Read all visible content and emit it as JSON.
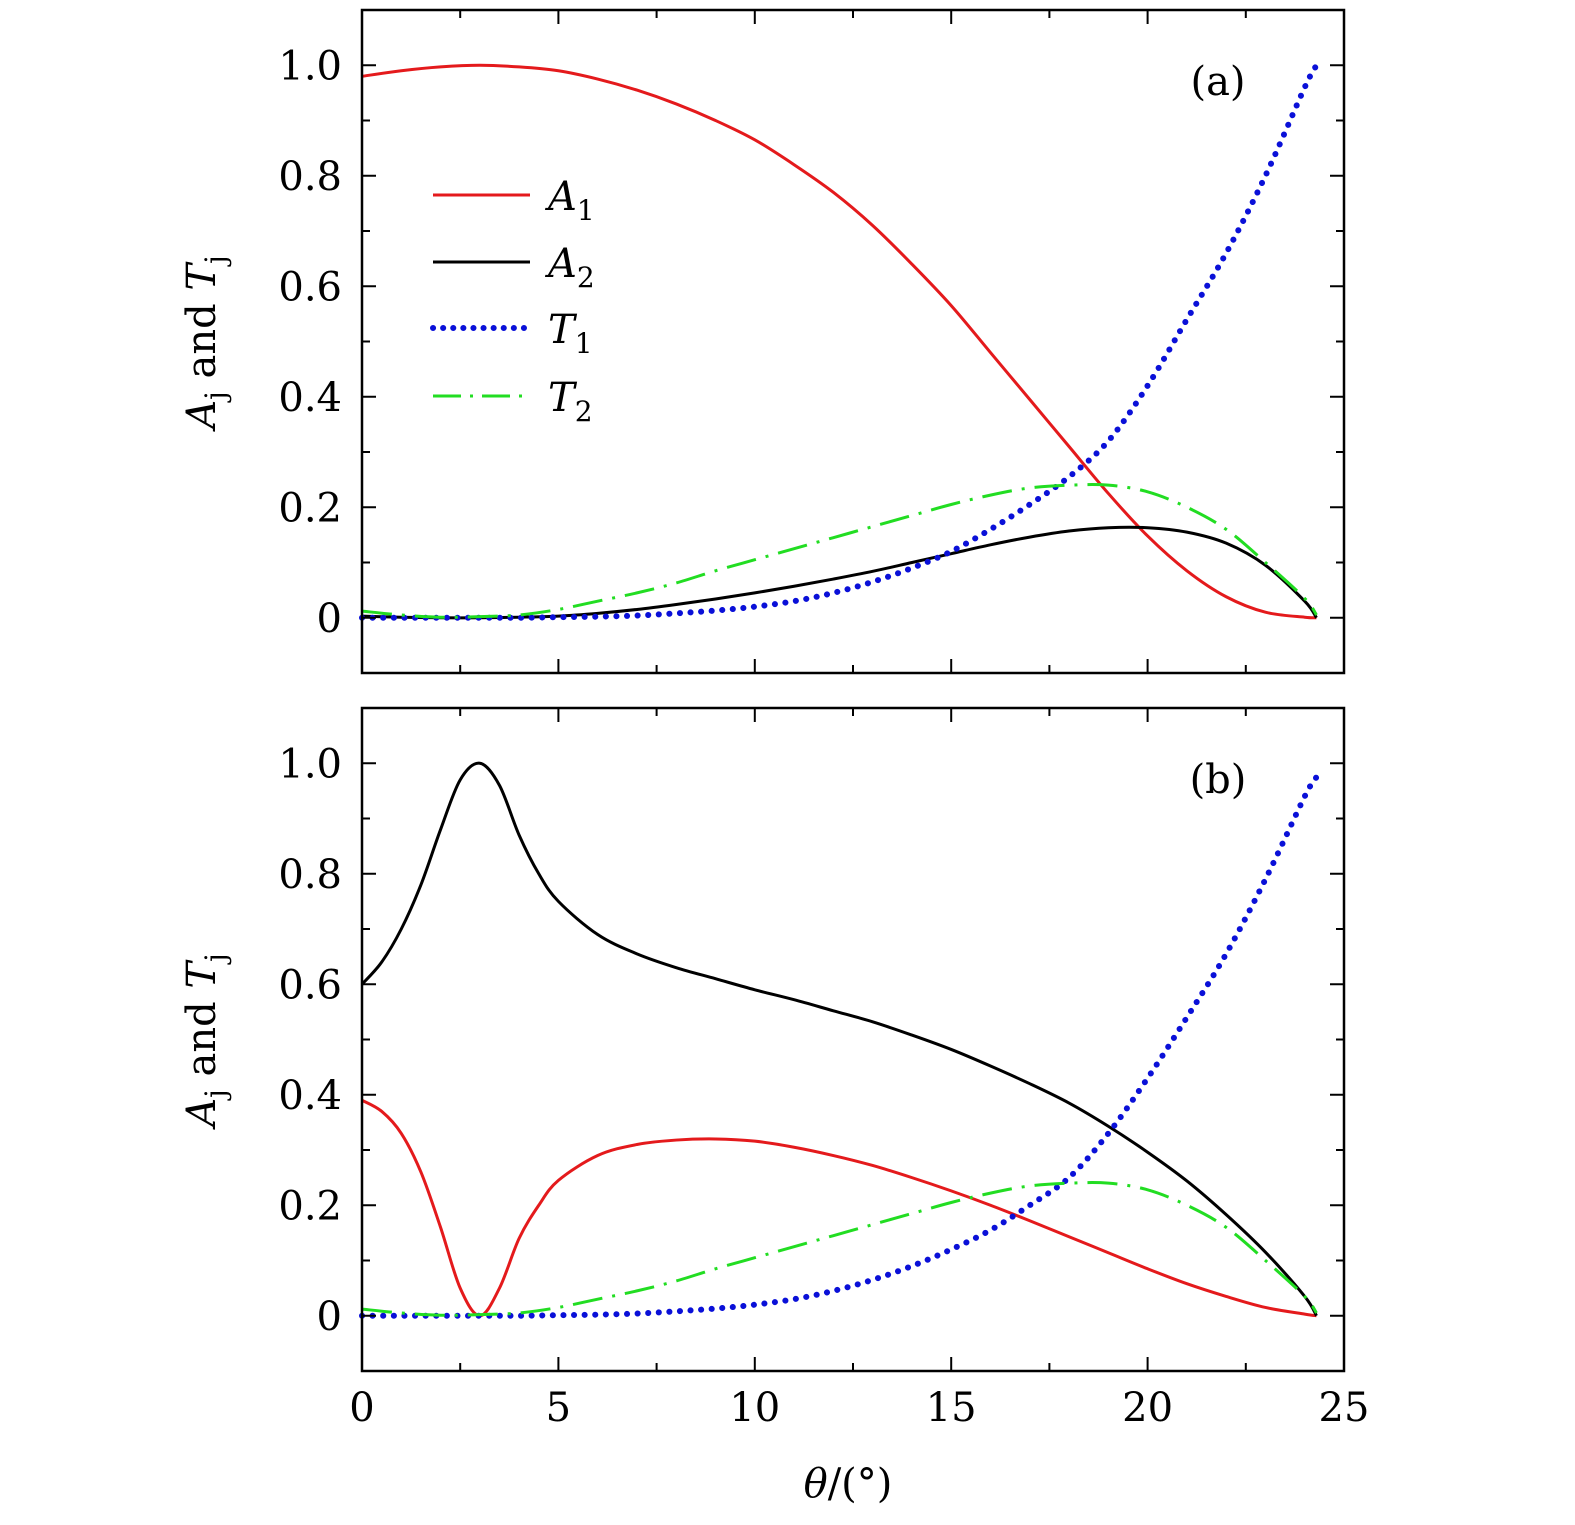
{
  "chart_data": [
    {
      "type": "line",
      "panel_label": "(a)",
      "ylabel": {
        "main": "A",
        "main_sub": "j",
        "mid": " and ",
        "second": "T",
        "second_sub": "j"
      },
      "xlim": [
        0,
        25
      ],
      "ylim": [
        -0.1,
        1.1
      ],
      "xticks": [
        0,
        5,
        10,
        15,
        20,
        25
      ],
      "yticks": [
        {
          "v": 0,
          "label": "0"
        },
        {
          "v": 0.2,
          "label": "0.2"
        },
        {
          "v": 0.4,
          "label": "0.4"
        },
        {
          "v": 0.6,
          "label": "0.6"
        },
        {
          "v": 0.8,
          "label": "0.8"
        },
        {
          "v": 1.0,
          "label": "1.0"
        }
      ],
      "show_xticklabels": false,
      "legend": {
        "placement": "upper-left"
      },
      "series": [
        {
          "name": "A1",
          "symbol": "A",
          "subscript": "1",
          "color": "#e41a1c",
          "style": "solid",
          "x": [
            0,
            1,
            2,
            3,
            4,
            5,
            6,
            7,
            8,
            9,
            10,
            11,
            12,
            13,
            14,
            15,
            16,
            17,
            18,
            19,
            20,
            21,
            22,
            23,
            24,
            24.3
          ],
          "y": [
            0.98,
            0.99,
            0.997,
            1.0,
            0.997,
            0.99,
            0.975,
            0.955,
            0.93,
            0.9,
            0.865,
            0.82,
            0.77,
            0.71,
            0.64,
            0.565,
            0.48,
            0.395,
            0.31,
            0.225,
            0.148,
            0.085,
            0.038,
            0.01,
            0.001,
            0
          ]
        },
        {
          "name": "A2",
          "symbol": "A",
          "subscript": "2",
          "color": "#000000",
          "style": "solid",
          "x": [
            0,
            1,
            2,
            3,
            4,
            5,
            6,
            7,
            8,
            9,
            10,
            11,
            12,
            13,
            14,
            15,
            16,
            17,
            18,
            19,
            20,
            21,
            22,
            23,
            24,
            24.3
          ],
          "y": [
            0.003,
            0.001,
            0,
            0,
            0.001,
            0.003,
            0.008,
            0.015,
            0.024,
            0.034,
            0.045,
            0.057,
            0.07,
            0.084,
            0.1,
            0.116,
            0.132,
            0.146,
            0.157,
            0.163,
            0.163,
            0.155,
            0.135,
            0.095,
            0.03,
            0
          ]
        },
        {
          "name": "T1",
          "symbol": "T",
          "subscript": "1",
          "color": "#0a10d8",
          "style": "dotted",
          "x": [
            0,
            1,
            2,
            3,
            4,
            5,
            6,
            7,
            8,
            9,
            10,
            11,
            12,
            13,
            14,
            15,
            16,
            17,
            18,
            19,
            20,
            21,
            22,
            23,
            24,
            24.3
          ],
          "y": [
            0,
            0,
            0,
            0,
            0,
            0.001,
            0.002,
            0.004,
            0.008,
            0.013,
            0.02,
            0.03,
            0.045,
            0.065,
            0.09,
            0.12,
            0.16,
            0.205,
            0.255,
            0.32,
            0.42,
            0.54,
            0.66,
            0.8,
            0.96,
            1.0
          ]
        },
        {
          "name": "T2",
          "symbol": "T",
          "subscript": "2",
          "color": "#22dd22",
          "style": "dashdot",
          "x": [
            0,
            1,
            2,
            3,
            4,
            5,
            6,
            7,
            8,
            9,
            10,
            11,
            12,
            13,
            14,
            15,
            16,
            17,
            18,
            19,
            20,
            21,
            22,
            23,
            24,
            24.3
          ],
          "y": [
            0.012,
            0.005,
            0.001,
            0.002,
            0.005,
            0.015,
            0.03,
            0.045,
            0.063,
            0.085,
            0.105,
            0.125,
            0.145,
            0.165,
            0.185,
            0.205,
            0.222,
            0.235,
            0.24,
            0.24,
            0.228,
            0.2,
            0.16,
            0.1,
            0.035,
            0.005
          ]
        }
      ]
    },
    {
      "type": "line",
      "panel_label": "(b)",
      "ylabel": {
        "main": "A",
        "main_sub": "j",
        "mid": " and ",
        "second": "T",
        "second_sub": "j"
      },
      "xlabel": {
        "symbol": "θ",
        "unit": "/(°)"
      },
      "xlim": [
        0,
        25
      ],
      "ylim": [
        -0.1,
        1.1
      ],
      "xticks": [
        0,
        5,
        10,
        15,
        20,
        25
      ],
      "xticklabels": [
        "0",
        "5",
        "10",
        "15",
        "20",
        "25"
      ],
      "yticks": [
        {
          "v": 0,
          "label": "0"
        },
        {
          "v": 0.2,
          "label": "0.2"
        },
        {
          "v": 0.4,
          "label": "0.4"
        },
        {
          "v": 0.6,
          "label": "0.6"
        },
        {
          "v": 0.8,
          "label": "0.8"
        },
        {
          "v": 1.0,
          "label": "1.0"
        }
      ],
      "show_xticklabels": true,
      "series": [
        {
          "name": "A1",
          "color": "#e41a1c",
          "style": "solid",
          "x": [
            0,
            0.5,
            1,
            1.5,
            2,
            2.5,
            3,
            3.5,
            4,
            4.5,
            5,
            6,
            7,
            8,
            9,
            10,
            11,
            12,
            13,
            14,
            15,
            16,
            17,
            18,
            19,
            20,
            21,
            22,
            23,
            24,
            24.3
          ],
          "y": [
            0.39,
            0.37,
            0.33,
            0.26,
            0.16,
            0.05,
            0,
            0.05,
            0.14,
            0.2,
            0.245,
            0.29,
            0.31,
            0.318,
            0.32,
            0.316,
            0.305,
            0.29,
            0.272,
            0.25,
            0.226,
            0.2,
            0.172,
            0.143,
            0.114,
            0.085,
            0.058,
            0.035,
            0.015,
            0.003,
            0
          ]
        },
        {
          "name": "A2",
          "color": "#000000",
          "style": "solid",
          "x": [
            0,
            0.5,
            1,
            1.5,
            2,
            2.5,
            3,
            3.5,
            4,
            4.5,
            5,
            6,
            7,
            8,
            9,
            10,
            11,
            12,
            13,
            14,
            15,
            16,
            17,
            18,
            19,
            20,
            21,
            22,
            23,
            24,
            24.3
          ],
          "y": [
            0.6,
            0.64,
            0.7,
            0.78,
            0.88,
            0.97,
            1.0,
            0.96,
            0.87,
            0.8,
            0.75,
            0.69,
            0.655,
            0.63,
            0.61,
            0.59,
            0.572,
            0.552,
            0.532,
            0.508,
            0.482,
            0.452,
            0.42,
            0.385,
            0.343,
            0.296,
            0.244,
            0.183,
            0.115,
            0.035,
            0
          ]
        },
        {
          "name": "T1",
          "color": "#0a10d8",
          "style": "dotted",
          "x": [
            0,
            1,
            2,
            3,
            4,
            5,
            6,
            7,
            8,
            9,
            10,
            11,
            12,
            13,
            14,
            15,
            16,
            17,
            18,
            19,
            20,
            21,
            22,
            23,
            24,
            24.3
          ],
          "y": [
            0,
            0,
            0,
            0,
            0,
            0.001,
            0.002,
            0.004,
            0.008,
            0.013,
            0.02,
            0.03,
            0.045,
            0.065,
            0.09,
            0.12,
            0.155,
            0.2,
            0.25,
            0.33,
            0.43,
            0.54,
            0.655,
            0.79,
            0.94,
            0.975
          ]
        },
        {
          "name": "T2",
          "color": "#22dd22",
          "style": "dashdot",
          "x": [
            0,
            1,
            2,
            3,
            4,
            5,
            6,
            7,
            8,
            9,
            10,
            11,
            12,
            13,
            14,
            15,
            16,
            17,
            18,
            19,
            20,
            21,
            22,
            23,
            24,
            24.3
          ],
          "y": [
            0.012,
            0.005,
            0.001,
            0.002,
            0.005,
            0.015,
            0.03,
            0.045,
            0.063,
            0.085,
            0.105,
            0.125,
            0.145,
            0.165,
            0.185,
            0.205,
            0.222,
            0.235,
            0.24,
            0.24,
            0.228,
            0.2,
            0.16,
            0.1,
            0.035,
            0.005
          ]
        }
      ]
    }
  ]
}
